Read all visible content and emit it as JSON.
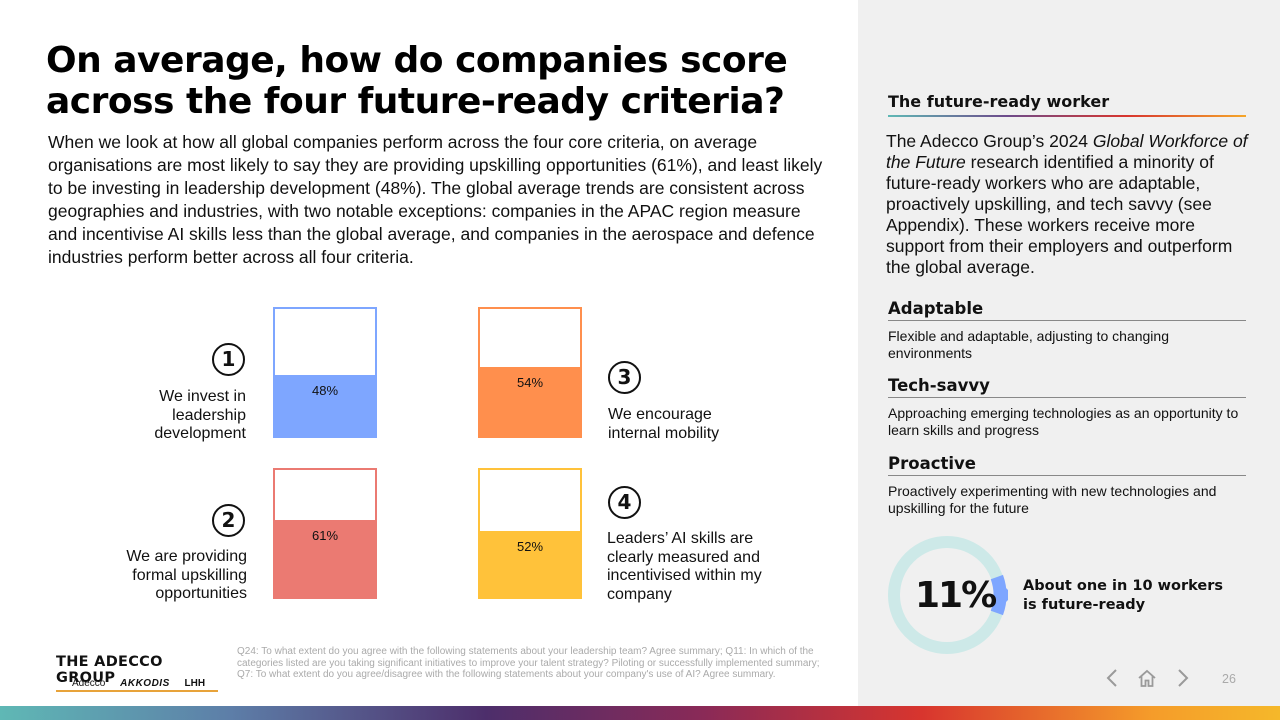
{
  "title": "On average, how do companies score across the four future-ready criteria?",
  "intro": "When we look at how all global companies perform across the four core criteria, on average organisations are most likely to say they are providing upskilling opportunities (61%), and least likely to be investing in leadership development (48%). The global average trends are consistent across geographies and industries, with two notable exceptions: companies in the APAC region measure and incentivise AI skills less than the global average, and companies in the aerospace and defence industries perform better across all four criteria.",
  "chart_data": {
    "type": "bar",
    "categories": [
      "We invest in leadership development",
      "We encourage internal mobility",
      "We are providing formal upskilling opportunities",
      "Leaders’ AI skills are clearly measured and incentivised within my company"
    ],
    "values": [
      48,
      54,
      61,
      52
    ],
    "ylim": [
      0,
      100
    ]
  },
  "criteria": [
    {
      "number": "1",
      "label": "We invest in leadership development",
      "pct_label": "48%",
      "value": 48,
      "color": "#7ea6ff"
    },
    {
      "number": "3",
      "label": "We encourage internal mobility",
      "pct_label": "54%",
      "value": 54,
      "color": "#ff8f4d"
    },
    {
      "number": "2",
      "label": "We are providing formal upskilling opportunities",
      "pct_label": "61%",
      "value": 61,
      "color": "#eb7a72"
    },
    {
      "number": "4",
      "label": "Leaders’ AI skills are clearly measured and incentivised within my company",
      "pct_label": "52%",
      "value": 52,
      "color": "#ffc23a"
    }
  ],
  "footer": {
    "logo": "THE ADECCO GROUP",
    "brands": [
      "Adecco",
      "AKKODIS",
      "LHH"
    ],
    "footnote": "Q24: To what extent do you agree with the following statements about your leadership team? Agree summary; Q11: In which of the categories listed are you taking significant initiatives to improve your talent strategy? Piloting or successfully implemented summary; Q7: To what extent do you agree/disagree with the following statements about your company's use of AI? Agree summary."
  },
  "sidebar": {
    "title": "The future-ready worker",
    "intro_before": "The Adecco Group’s 2024 ",
    "intro_italic": "Global Workforce of the Future",
    "intro_after": " research identified a minority of future-ready workers who are adaptable, proactively upskilling, and tech savvy (see Appendix). These workers receive more support from their employers and outperform the global average.",
    "traits": [
      {
        "heading": "Adaptable",
        "description": "Flexible and adaptable, adjusting to changing environments"
      },
      {
        "heading": "Tech-savvy",
        "description": "Approaching emerging technologies as an opportunity to learn skills and progress"
      },
      {
        "heading": "Proactive",
        "description": "Proactively experimenting with new technologies and upskilling for the future"
      }
    ],
    "stat": {
      "value": "11%",
      "fraction": 0.11,
      "caption": "About one in 10 workers is future-ready"
    }
  },
  "nav": {
    "page_number": "26",
    "icons": [
      "chevron-left-icon",
      "home-icon",
      "chevron-right-icon"
    ]
  },
  "colors": {
    "track": "#cde9e8",
    "highlight": "#7ea6ff",
    "footer_underline": "#e8a33a"
  }
}
